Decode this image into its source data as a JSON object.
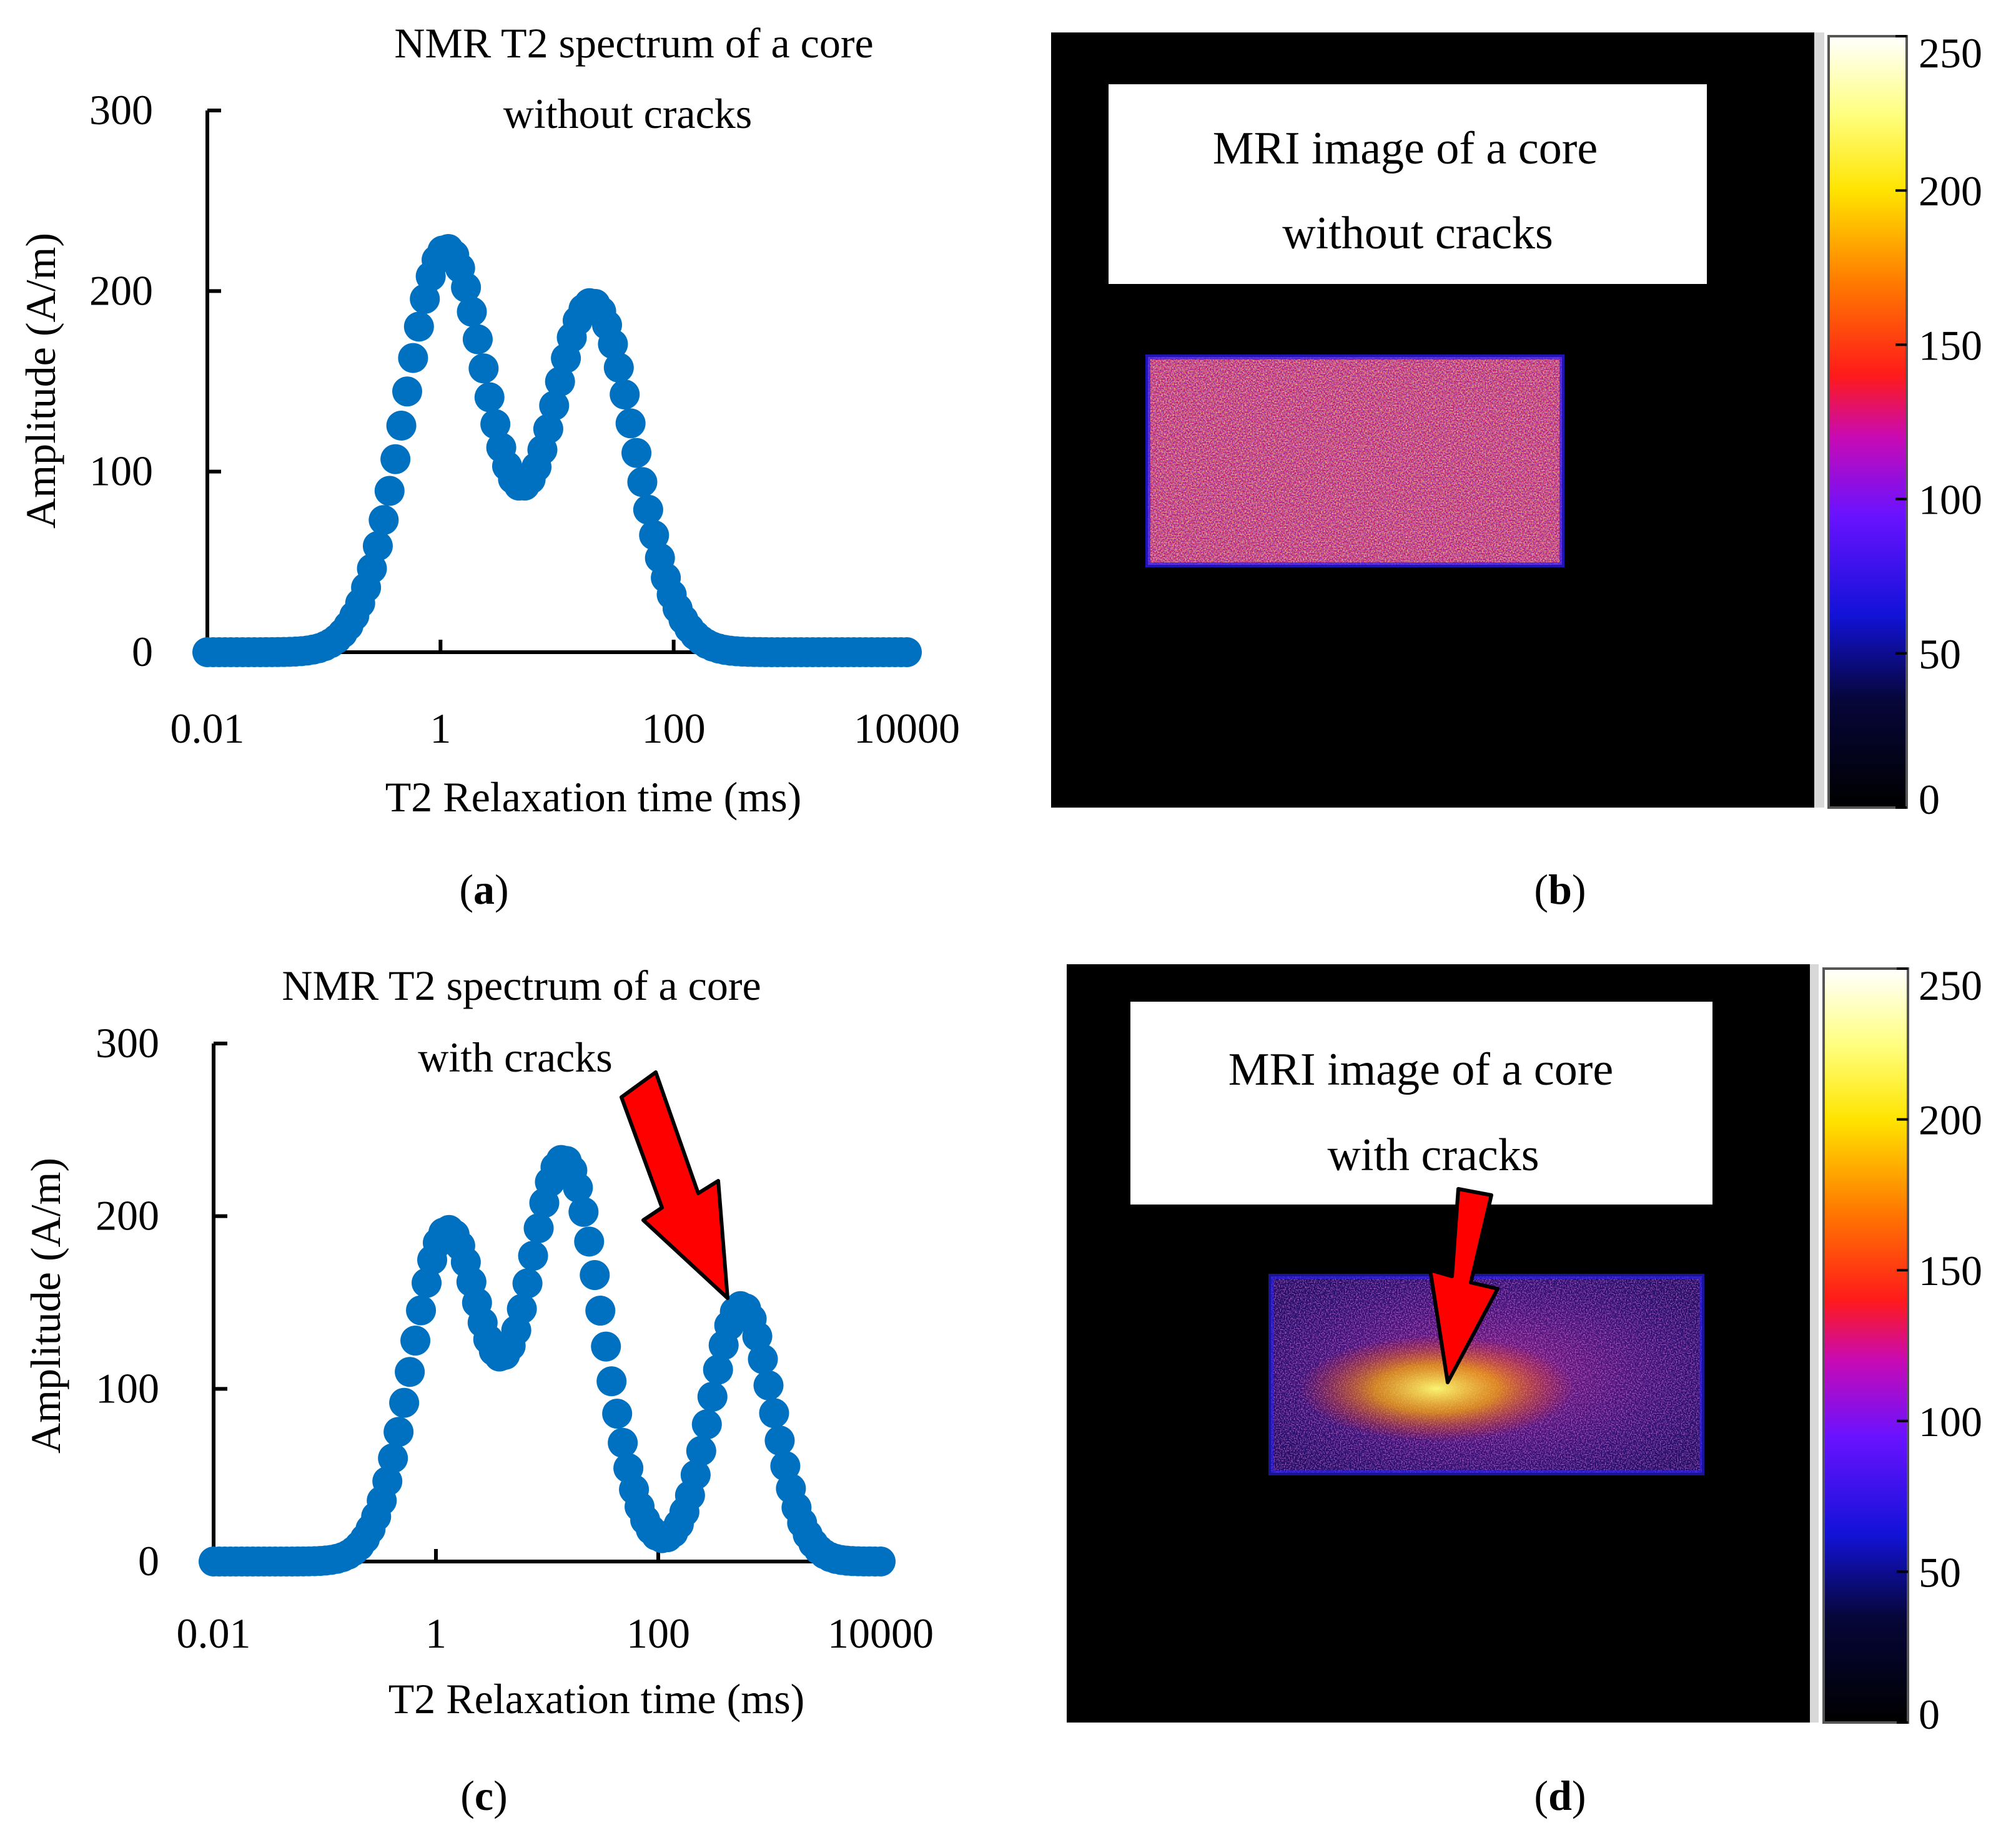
{
  "chart_data": [
    {
      "panel": "a",
      "type": "scatter",
      "title_lines": [
        "NMR  T2 spectrum of a core",
        "without cracks"
      ],
      "xlabel": "T2  Relaxation time (ms)",
      "ylabel": "Amplitude (A/m)",
      "xscale": "log",
      "xlim": [
        0.01,
        10000
      ],
      "ylim": [
        0,
        300
      ],
      "xticks": [
        "0.01",
        "1",
        "100",
        "10000"
      ],
      "yticks": [
        "0",
        "100",
        "200",
        "300"
      ],
      "marker_color": "#0070c0",
      "series": [
        {
          "name": "T2 spectrum",
          "components": [
            {
              "amp": 223,
              "center_log10": 0.05,
              "sigma": 0.36
            },
            {
              "amp": 193,
              "center_log10": 1.3,
              "sigma": 0.36
            }
          ],
          "x_range_log10": [
            -2,
            4
          ],
          "points": 120
        }
      ]
    },
    {
      "panel": "c",
      "type": "scatter",
      "title_lines": [
        "NMR  T2 spectrum of a core",
        "with cracks"
      ],
      "xlabel": "T2  Relaxation time (ms)",
      "ylabel": "Amplitude (A/m)",
      "xscale": "log",
      "xlim": [
        0.01,
        10000
      ],
      "ylim": [
        0,
        300
      ],
      "xticks": [
        "0.01",
        "1",
        "100",
        "10000"
      ],
      "yticks": [
        "0",
        "100",
        "200",
        "300"
      ],
      "marker_color": "#0070c0",
      "annotation": {
        "type": "arrow",
        "color": "#ff0000",
        "points_to": {
          "x": 500,
          "y": 150
        }
      },
      "series": [
        {
          "name": "T2 spectrum",
          "components": [
            {
              "amp": 190,
              "center_log10": 0.1,
              "sigma": 0.32
            },
            {
              "amp": 232,
              "center_log10": 1.15,
              "sigma": 0.34
            },
            {
              "amp": 148,
              "center_log10": 2.75,
              "sigma": 0.28
            }
          ],
          "x_range_log10": [
            -2,
            4
          ],
          "points": 120
        }
      ]
    }
  ],
  "mri_panels": [
    {
      "panel": "b",
      "label_lines": [
        "MRI image of a core",
        "without cracks"
      ],
      "colorbar_ticks": [
        "250",
        "200",
        "150",
        "100",
        "50",
        "0"
      ],
      "colorbar_range": [
        0,
        250
      ],
      "has_hotspot": false
    },
    {
      "panel": "d",
      "label_lines": [
        "MRI image of a core",
        "with cracks"
      ],
      "colorbar_ticks": [
        "250",
        "200",
        "150",
        "100",
        "50",
        "0"
      ],
      "colorbar_range": [
        0,
        250
      ],
      "has_hotspot": true,
      "arrow_color": "#ff0000"
    }
  ],
  "captions": [
    "a",
    "b",
    "c",
    "d"
  ]
}
